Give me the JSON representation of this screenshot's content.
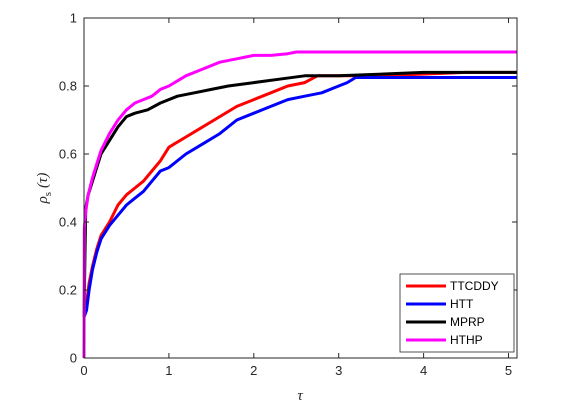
{
  "chart_data": {
    "type": "line",
    "xlabel": "τ",
    "ylabel": "ρ",
    "ylabel_sub": "s",
    "ylabel_arg": "(τ)",
    "xlim": [
      0,
      5.1
    ],
    "ylim": [
      0,
      1
    ],
    "xticks": [
      "0",
      "1",
      "2",
      "3",
      "4",
      "5"
    ],
    "yticks": [
      "0",
      "0.2",
      "0.4",
      "0.6",
      "0.8",
      "1"
    ],
    "grid": false,
    "legend_position": "bottom-right",
    "series": [
      {
        "name": "TTCDDY",
        "color": "#ff0000",
        "points": [
          [
            0,
            0.12
          ],
          [
            0.03,
            0.16
          ],
          [
            0.06,
            0.22
          ],
          [
            0.1,
            0.27
          ],
          [
            0.15,
            0.32
          ],
          [
            0.2,
            0.36
          ],
          [
            0.3,
            0.4
          ],
          [
            0.4,
            0.45
          ],
          [
            0.5,
            0.48
          ],
          [
            0.6,
            0.5
          ],
          [
            0.7,
            0.52
          ],
          [
            0.8,
            0.55
          ],
          [
            0.9,
            0.58
          ],
          [
            1.0,
            0.62
          ],
          [
            1.2,
            0.65
          ],
          [
            1.4,
            0.68
          ],
          [
            1.6,
            0.71
          ],
          [
            1.8,
            0.74
          ],
          [
            2.0,
            0.76
          ],
          [
            2.2,
            0.78
          ],
          [
            2.4,
            0.8
          ],
          [
            2.6,
            0.81
          ],
          [
            2.75,
            0.83
          ],
          [
            3.5,
            0.83
          ],
          [
            4.5,
            0.84
          ],
          [
            5.1,
            0.84
          ]
        ]
      },
      {
        "name": "HTT",
        "color": "#0000ff",
        "points": [
          [
            0,
            0.12
          ],
          [
            0.03,
            0.14
          ],
          [
            0.06,
            0.2
          ],
          [
            0.1,
            0.26
          ],
          [
            0.15,
            0.31
          ],
          [
            0.2,
            0.35
          ],
          [
            0.3,
            0.39
          ],
          [
            0.4,
            0.42
          ],
          [
            0.5,
            0.45
          ],
          [
            0.6,
            0.47
          ],
          [
            0.7,
            0.49
          ],
          [
            0.8,
            0.52
          ],
          [
            0.9,
            0.55
          ],
          [
            1.0,
            0.56
          ],
          [
            1.2,
            0.6
          ],
          [
            1.4,
            0.63
          ],
          [
            1.6,
            0.66
          ],
          [
            1.8,
            0.7
          ],
          [
            2.0,
            0.72
          ],
          [
            2.2,
            0.74
          ],
          [
            2.4,
            0.76
          ],
          [
            2.6,
            0.77
          ],
          [
            2.8,
            0.78
          ],
          [
            3.0,
            0.8
          ],
          [
            3.1,
            0.81
          ],
          [
            3.2,
            0.825
          ],
          [
            5.1,
            0.825
          ]
        ]
      },
      {
        "name": "MPRP",
        "color": "#000000",
        "points": [
          [
            0,
            0.12
          ],
          [
            0.02,
            0.44
          ],
          [
            0.05,
            0.48
          ],
          [
            0.1,
            0.52
          ],
          [
            0.15,
            0.56
          ],
          [
            0.2,
            0.6
          ],
          [
            0.3,
            0.64
          ],
          [
            0.4,
            0.68
          ],
          [
            0.5,
            0.71
          ],
          [
            0.6,
            0.72
          ],
          [
            0.75,
            0.73
          ],
          [
            0.9,
            0.75
          ],
          [
            1.1,
            0.77
          ],
          [
            1.3,
            0.78
          ],
          [
            1.5,
            0.79
          ],
          [
            1.7,
            0.8
          ],
          [
            2.0,
            0.81
          ],
          [
            2.3,
            0.82
          ],
          [
            2.6,
            0.83
          ],
          [
            3.0,
            0.83
          ],
          [
            4.0,
            0.84
          ],
          [
            5.1,
            0.84
          ]
        ]
      },
      {
        "name": "HTHP",
        "color": "#ff00ff",
        "points": [
          [
            0,
            0
          ],
          [
            0.003,
            0.38
          ],
          [
            0.02,
            0.43
          ],
          [
            0.05,
            0.48
          ],
          [
            0.1,
            0.53
          ],
          [
            0.15,
            0.57
          ],
          [
            0.2,
            0.61
          ],
          [
            0.3,
            0.66
          ],
          [
            0.4,
            0.7
          ],
          [
            0.5,
            0.73
          ],
          [
            0.6,
            0.75
          ],
          [
            0.7,
            0.76
          ],
          [
            0.8,
            0.77
          ],
          [
            0.9,
            0.79
          ],
          [
            1.0,
            0.8
          ],
          [
            1.2,
            0.83
          ],
          [
            1.4,
            0.85
          ],
          [
            1.6,
            0.87
          ],
          [
            1.8,
            0.88
          ],
          [
            2.0,
            0.89
          ],
          [
            2.2,
            0.89
          ],
          [
            2.4,
            0.895
          ],
          [
            2.5,
            0.9
          ],
          [
            5.1,
            0.9
          ]
        ]
      }
    ]
  }
}
